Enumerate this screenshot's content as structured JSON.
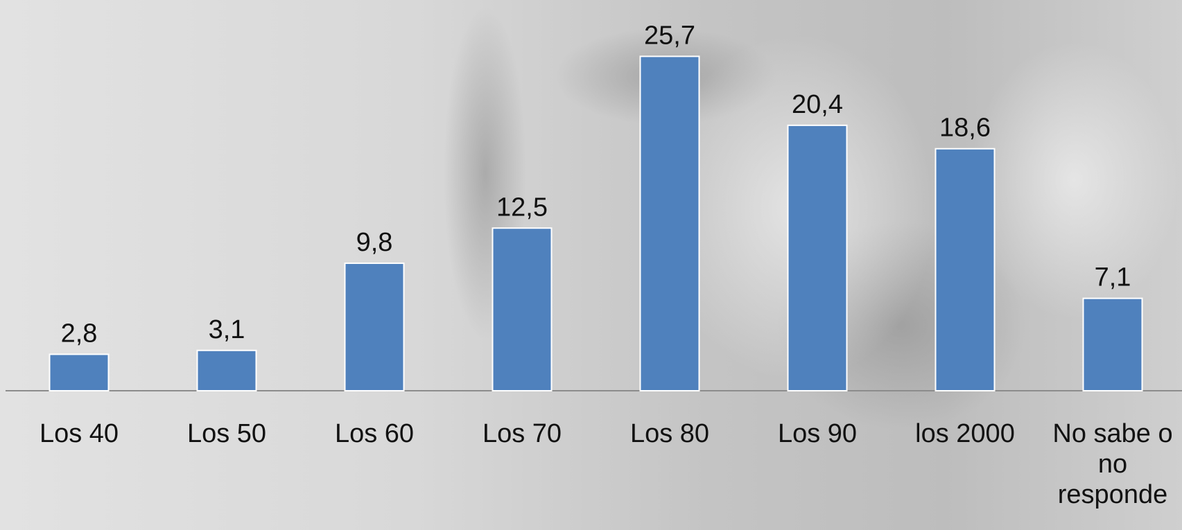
{
  "chart_data": {
    "type": "bar",
    "categories": [
      "Los 40",
      "Los 50",
      "Los 60",
      "Los 70",
      "Los 80",
      "Los 90",
      "los 2000",
      "No sabe o no responde"
    ],
    "values": [
      2.8,
      3.1,
      9.8,
      12.5,
      25.7,
      20.4,
      18.6,
      7.1
    ],
    "value_labels": [
      "2,8",
      "3,1",
      "9,8",
      "12,5",
      "25,7",
      "20,4",
      "18,6",
      "7,1"
    ],
    "color": "#4f81bd"
  }
}
